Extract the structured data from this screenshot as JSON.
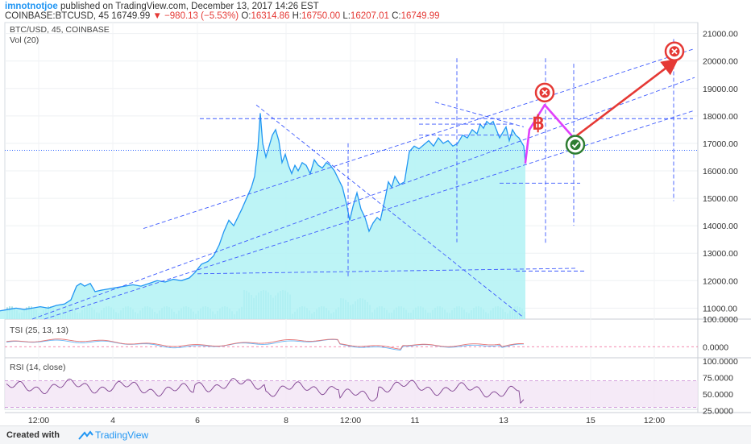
{
  "header": {
    "user": "imnotnotjoe",
    "published": " published on TradingView.com, December 13, 2017 14:26 EST",
    "symbol": "COINBASE:BTCUSD, 45",
    "price": "16749.99",
    "change_icon": "down-triangle-icon",
    "change": "−980.13 (−5.53%)",
    "o_label": "O:",
    "o": "16314.86",
    "h_label": "H:",
    "h": "16750.00",
    "l_label": "L:",
    "l": "16207.01",
    "c_label": "C:",
    "c": "16749.99"
  },
  "overlays": {
    "title": "BTC/USD, 45, COINBASE",
    "volume": "Vol (20)",
    "tsi": "TSI (25, 13, 13)",
    "rsi": "RSI (14, close)"
  },
  "footer": {
    "created": "Created with",
    "brand": "TradingView"
  },
  "colors": {
    "price_line": "#2196f3",
    "area_fill": "#b2f2f4",
    "current_line": "#2962ff",
    "projection_pink": "#e040fb",
    "projection_red": "#e53935",
    "target_ok": "#2e7d32",
    "rsi_line": "#7e3f8f",
    "tsi_line": "#e57373",
    "signal_line": "#64b5f6"
  },
  "chart_data": [
    {
      "type": "area",
      "symbol": "BTC/USD",
      "interval": "45",
      "exchange": "COINBASE",
      "x_ticks": [
        "12:00",
        "4",
        "6",
        "8",
        "12:00",
        "11",
        "13",
        "15",
        "12:00"
      ],
      "y_ticks": [
        "21000.00",
        "20000.00",
        "19000.00",
        "18000.00",
        "17000.00",
        "16000.00",
        "15000.00",
        "14000.00",
        "13000.00",
        "12000.00",
        "11000.00"
      ],
      "ylim": [
        10600,
        21400
      ],
      "current_price": 16749.99,
      "grid": true,
      "price": [
        [
          0,
          10900
        ],
        [
          10,
          10950
        ],
        [
          20,
          11000
        ],
        [
          30,
          10950
        ],
        [
          40,
          11000
        ],
        [
          50,
          11050
        ],
        [
          60,
          11000
        ],
        [
          70,
          11100
        ],
        [
          80,
          11150
        ],
        [
          88,
          11300
        ],
        [
          95,
          11800
        ],
        [
          100,
          11900
        ],
        [
          105,
          11800
        ],
        [
          112,
          11900
        ],
        [
          118,
          11600
        ],
        [
          125,
          11650
        ],
        [
          135,
          11700
        ],
        [
          145,
          11750
        ],
        [
          155,
          11800
        ],
        [
          165,
          11850
        ],
        [
          175,
          11800
        ],
        [
          185,
          11900
        ],
        [
          195,
          12000
        ],
        [
          205,
          11950
        ],
        [
          215,
          12050
        ],
        [
          225,
          12000
        ],
        [
          235,
          12100
        ],
        [
          242,
          12300
        ],
        [
          250,
          12600
        ],
        [
          258,
          12700
        ],
        [
          265,
          12900
        ],
        [
          272,
          13300
        ],
        [
          278,
          13800
        ],
        [
          284,
          14200
        ],
        [
          290,
          14000
        ],
        [
          295,
          14300
        ],
        [
          300,
          14600
        ],
        [
          306,
          15000
        ],
        [
          312,
          15400
        ],
        [
          316,
          15800
        ],
        [
          320,
          16800
        ],
        [
          323,
          18100
        ],
        [
          326,
          17000
        ],
        [
          330,
          16500
        ],
        [
          334,
          16900
        ],
        [
          338,
          17300
        ],
        [
          342,
          17500
        ],
        [
          346,
          17100
        ],
        [
          350,
          16300
        ],
        [
          354,
          16600
        ],
        [
          358,
          16200
        ],
        [
          362,
          15900
        ],
        [
          366,
          16200
        ],
        [
          370,
          16000
        ],
        [
          375,
          16300
        ],
        [
          380,
          16200
        ],
        [
          385,
          15900
        ],
        [
          390,
          16400
        ],
        [
          395,
          16200
        ],
        [
          400,
          16100
        ],
        [
          405,
          16300
        ],
        [
          410,
          16200
        ],
        [
          415,
          16000
        ],
        [
          420,
          15700
        ],
        [
          425,
          15400
        ],
        [
          430,
          14800
        ],
        [
          434,
          14200
        ],
        [
          438,
          14700
        ],
        [
          443,
          15200
        ],
        [
          448,
          14600
        ],
        [
          453,
          14300
        ],
        [
          458,
          13800
        ],
        [
          463,
          14100
        ],
        [
          468,
          14300
        ],
        [
          472,
          14200
        ],
        [
          478,
          15000
        ],
        [
          482,
          15600
        ],
        [
          486,
          15400
        ],
        [
          490,
          15800
        ],
        [
          496,
          15500
        ],
        [
          502,
          15600
        ],
        [
          508,
          16700
        ],
        [
          514,
          16900
        ],
        [
          520,
          16800
        ],
        [
          526,
          16950
        ],
        [
          532,
          17100
        ],
        [
          538,
          16900
        ],
        [
          544,
          17200
        ],
        [
          550,
          17000
        ],
        [
          556,
          17100
        ],
        [
          562,
          16900
        ],
        [
          568,
          17000
        ],
        [
          574,
          17300
        ],
        [
          580,
          17200
        ],
        [
          586,
          17500
        ],
        [
          592,
          17350
        ],
        [
          596,
          17700
        ],
        [
          600,
          17550
        ],
        [
          604,
          17800
        ],
        [
          608,
          17700
        ],
        [
          612,
          17800
        ],
        [
          616,
          17500
        ],
        [
          620,
          17200
        ],
        [
          624,
          17400
        ],
        [
          628,
          17600
        ],
        [
          632,
          17100
        ],
        [
          636,
          17500
        ],
        [
          640,
          17300
        ],
        [
          644,
          17200
        ],
        [
          650,
          16900
        ],
        [
          652,
          16300
        ]
      ],
      "projection": [
        {
          "from": [
            652,
            16300
          ],
          "to": [
            657,
            17500
          ],
          "color": "pink"
        },
        {
          "from": [
            657,
            17500
          ],
          "to": [
            676,
            18400
          ],
          "color": "pink"
        },
        {
          "from": [
            676,
            18400
          ],
          "to": [
            712,
            17200
          ],
          "color": "pink"
        },
        {
          "from": [
            712,
            17200
          ],
          "to": [
            838,
            20000
          ],
          "color": "red"
        }
      ],
      "markers": [
        {
          "name": "target-up",
          "icon": "x-circle-icon",
          "x": 676,
          "y": 18850
        },
        {
          "name": "target-dip",
          "icon": "check-circle-icon",
          "x": 714,
          "y": 16950
        },
        {
          "name": "target-high",
          "icon": "x-circle-icon",
          "x": 837,
          "y": 20350
        },
        {
          "name": "bitcoin-logo",
          "icon": "bitcoin-icon",
          "x": 668,
          "y": 17800
        }
      ],
      "trend_lines": [
        {
          "from": [
            178,
            13900
          ],
          "to": [
            862,
            20450
          ]
        },
        {
          "from": [
            40,
            10600
          ],
          "to": [
            862,
            19400
          ]
        },
        {
          "from": [
            55,
            10600
          ],
          "to": [
            862,
            18200
          ]
        },
        {
          "from": [
            245,
            12250
          ],
          "to": [
            715,
            12450
          ]
        },
        {
          "from": [
            248,
            17900
          ],
          "to": [
            860,
            17900
          ]
        },
        {
          "from": [
            318,
            18400
          ],
          "to": [
            648,
            10700
          ]
        },
        {
          "from": [
            540,
            18500
          ],
          "to": [
            650,
            17600
          ]
        }
      ],
      "v_lines": [
        {
          "x": 432,
          "from": 17000,
          "to": 12150
        },
        {
          "x": 567,
          "from": 20100,
          "to": 13400
        },
        {
          "x": 677,
          "from": 20100,
          "to": 13300
        },
        {
          "x": 712,
          "from": 19900,
          "to": 14000
        },
        {
          "x": 836,
          "from": 20800,
          "to": 14900
        }
      ],
      "h_dashes": [
        {
          "y": 17300,
          "from": 520,
          "to": 640
        },
        {
          "y": 17700,
          "from": 520,
          "to": 640
        },
        {
          "y": 15550,
          "from": 620,
          "to": 720
        },
        {
          "y": 12350,
          "from": 640,
          "to": 725
        }
      ]
    },
    {
      "type": "line",
      "title": "TSI (25, 13, 13)",
      "y_ticks": [
        "100.0000",
        "0.0000"
      ],
      "ylim": [
        -40,
        100
      ]
    },
    {
      "type": "line",
      "title": "RSI (14, close)",
      "y_ticks": [
        "100.0000",
        "75.0000",
        "50.0000",
        "25.0000"
      ],
      "ylim": [
        22,
        105
      ],
      "band": [
        30,
        70
      ]
    }
  ]
}
